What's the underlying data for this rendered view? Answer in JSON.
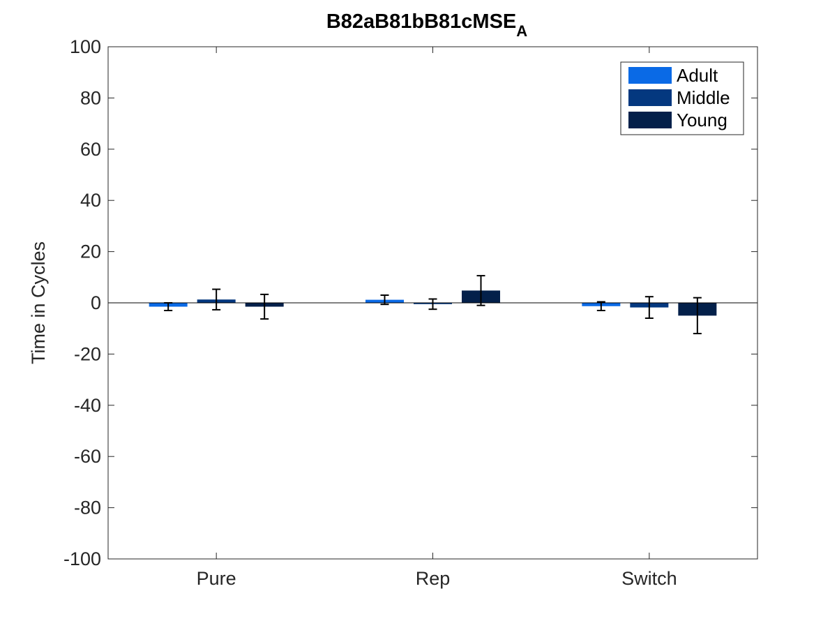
{
  "chart_data": {
    "type": "bar",
    "title": "B82aB81bB81cMSE",
    "title_subscript": "A",
    "ylabel": "Time in Cycles",
    "xlabel": "",
    "ylim": [
      -100,
      100
    ],
    "yticks": [
      -100,
      -80,
      -60,
      -40,
      -20,
      0,
      20,
      40,
      60,
      80,
      100
    ],
    "categories": [
      "Pure",
      "Rep",
      "Switch"
    ],
    "series": [
      {
        "name": "Adult",
        "color": "#0a6ae6",
        "values": [
          -1.5,
          1.2,
          -1.3
        ],
        "error": [
          1.5,
          1.8,
          1.7
        ]
      },
      {
        "name": "Middle",
        "color": "#04387f",
        "values": [
          1.3,
          -0.5,
          -1.8
        ],
        "error": [
          4.0,
          2.0,
          4.2
        ]
      },
      {
        "name": "Young",
        "color": "#03204a",
        "values": [
          -1.5,
          4.8,
          -5.0
        ],
        "error": [
          4.8,
          5.8,
          7.0
        ]
      }
    ],
    "legend_position": "top-right",
    "grid": false
  }
}
